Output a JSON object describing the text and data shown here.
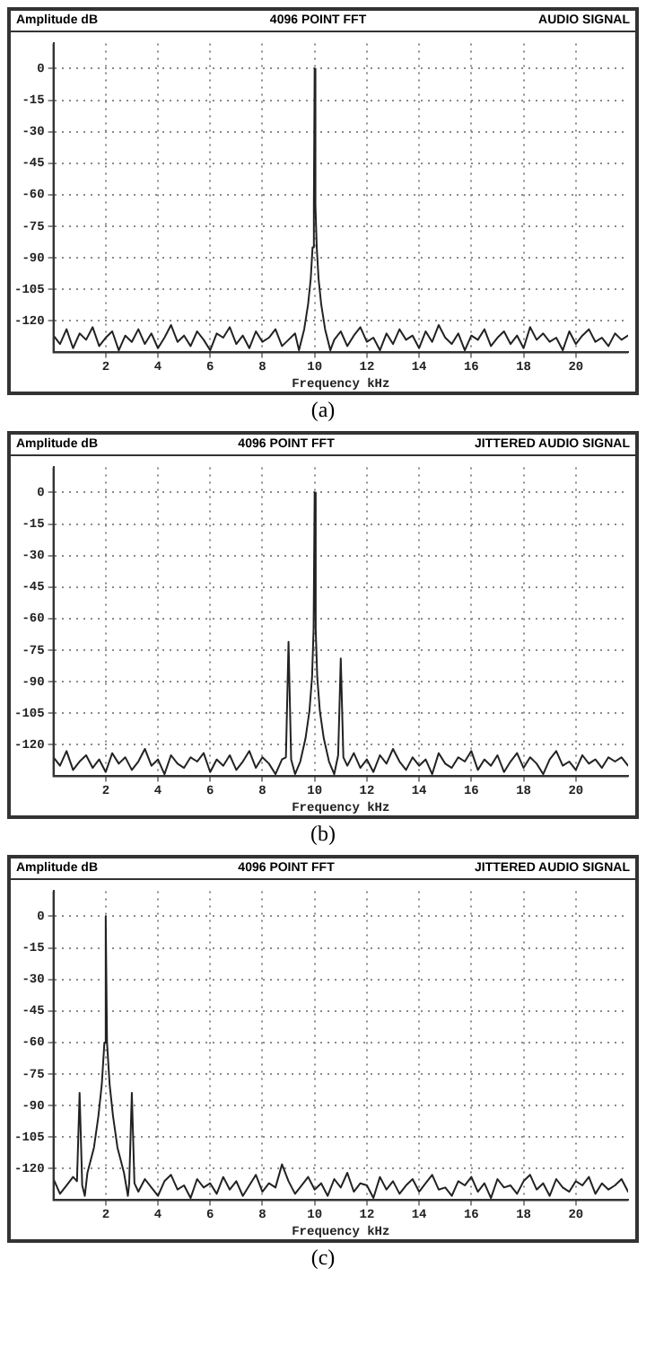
{
  "chart_data": [
    {
      "type": "line",
      "title": "4096 POINT FFT",
      "subtitle": "AUDIO SIGNAL",
      "ylabel": "Amplitude dB",
      "xlabel": "Frequency kHz",
      "annotations": [
        "(a)"
      ],
      "xlim": [
        0,
        22
      ],
      "ylim": [
        -135,
        12
      ],
      "xticks": [
        2,
        4,
        6,
        8,
        10,
        12,
        14,
        16,
        18,
        20
      ],
      "yticks": [
        0,
        -15,
        -30,
        -45,
        -60,
        -75,
        -90,
        -105,
        -120
      ],
      "grid": true,
      "legend": false,
      "marker": "none",
      "line_style": "solid",
      "series": [
        {
          "color": "#222222",
          "x": [
            0,
            0.25,
            0.5,
            0.75,
            1,
            1.25,
            1.5,
            1.75,
            2,
            2.25,
            2.5,
            2.75,
            3,
            3.25,
            3.5,
            3.75,
            4,
            4.25,
            4.5,
            4.75,
            5,
            5.25,
            5.5,
            5.75,
            6,
            6.25,
            6.5,
            6.75,
            7,
            7.25,
            7.5,
            7.75,
            8,
            8.25,
            8.5,
            8.75,
            9,
            9.25,
            9.4,
            9.6,
            9.75,
            9.85,
            9.92,
            9.97,
            10,
            10.03,
            10.08,
            10.15,
            10.25,
            10.4,
            10.6,
            10.75,
            11,
            11.25,
            11.5,
            11.75,
            12,
            12.25,
            12.5,
            12.75,
            13,
            13.25,
            13.5,
            13.75,
            14,
            14.25,
            14.5,
            14.75,
            15,
            15.25,
            15.5,
            15.75,
            16,
            16.25,
            16.5,
            16.75,
            17,
            17.25,
            17.5,
            17.75,
            18,
            18.25,
            18.5,
            18.75,
            19,
            19.25,
            19.5,
            19.75,
            20,
            20.25,
            20.5,
            20.75,
            21,
            21.25,
            21.5,
            21.75,
            22
          ],
          "values": [
            -127,
            -131,
            -124,
            -133,
            -126,
            -129,
            -123,
            -132,
            -128,
            -125,
            -134,
            -127,
            -130,
            -124,
            -131,
            -126,
            -133,
            -128,
            -122,
            -130,
            -127,
            -132,
            -125,
            -129,
            -134,
            -126,
            -128,
            -123,
            -131,
            -127,
            -133,
            -125,
            -130,
            -128,
            -124,
            -132,
            -129,
            -126,
            -134,
            -124,
            -112,
            -100,
            -85,
            -65,
            0,
            -65,
            -85,
            -100,
            -112,
            -124,
            -134,
            -129,
            -125,
            -132,
            -127,
            -123,
            -130,
            -128,
            -134,
            -126,
            -131,
            -124,
            -129,
            -127,
            -133,
            -125,
            -130,
            -122,
            -128,
            -131,
            -126,
            -134,
            -127,
            -129,
            -124,
            -132,
            -128,
            -125,
            -131,
            -127,
            -133,
            -123,
            -129,
            -126,
            -130,
            -128,
            -134,
            -125,
            -131,
            -127,
            -124,
            -130,
            -128,
            -132,
            -126,
            -129,
            -127
          ]
        }
      ]
    },
    {
      "type": "line",
      "title": "4096 POINT FFT",
      "subtitle": "JITTERED AUDIO SIGNAL",
      "ylabel": "Amplitude dB",
      "xlabel": "Frequency kHz",
      "annotations": [
        "(b)"
      ],
      "xlim": [
        0,
        22
      ],
      "ylim": [
        -135,
        12
      ],
      "xticks": [
        2,
        4,
        6,
        8,
        10,
        12,
        14,
        16,
        18,
        20
      ],
      "yticks": [
        0,
        -15,
        -30,
        -45,
        -60,
        -75,
        -90,
        -105,
        -120
      ],
      "grid": true,
      "legend": false,
      "marker": "none",
      "line_style": "solid",
      "series": [
        {
          "color": "#222222",
          "x": [
            0,
            0.25,
            0.5,
            0.75,
            1,
            1.25,
            1.5,
            1.75,
            2,
            2.25,
            2.5,
            2.75,
            3,
            3.25,
            3.5,
            3.75,
            4,
            4.25,
            4.5,
            4.75,
            5,
            5.25,
            5.5,
            5.75,
            6,
            6.25,
            6.5,
            6.75,
            7,
            7.25,
            7.5,
            7.75,
            8,
            8.25,
            8.5,
            8.75,
            8.9,
            9,
            9.1,
            9.25,
            9.45,
            9.65,
            9.8,
            9.9,
            9.96,
            10,
            10.04,
            10.1,
            10.2,
            10.35,
            10.55,
            10.75,
            10.9,
            11,
            11.1,
            11.25,
            11.5,
            11.75,
            12,
            12.25,
            12.5,
            12.75,
            13,
            13.25,
            13.5,
            13.75,
            14,
            14.25,
            14.5,
            14.75,
            15,
            15.25,
            15.5,
            15.75,
            16,
            16.25,
            16.5,
            16.75,
            17,
            17.25,
            17.5,
            17.75,
            18,
            18.25,
            18.5,
            18.75,
            19,
            19.25,
            19.5,
            19.75,
            20,
            20.25,
            20.5,
            20.75,
            21,
            21.25,
            21.5,
            21.75,
            22
          ],
          "values": [
            -126,
            -130,
            -123,
            -132,
            -128,
            -125,
            -131,
            -127,
            -133,
            -124,
            -129,
            -126,
            -132,
            -128,
            -122,
            -130,
            -127,
            -134,
            -125,
            -129,
            -131,
            -126,
            -128,
            -124,
            -133,
            -127,
            -130,
            -125,
            -132,
            -128,
            -123,
            -131,
            -126,
            -129,
            -134,
            -127,
            -126,
            -71,
            -127,
            -134,
            -128,
            -117,
            -104,
            -88,
            -65,
            0,
            -65,
            -88,
            -104,
            -117,
            -128,
            -134,
            -125,
            -79,
            -126,
            -130,
            -124,
            -131,
            -127,
            -133,
            -125,
            -129,
            -122,
            -128,
            -132,
            -126,
            -130,
            -127,
            -134,
            -124,
            -129,
            -131,
            -126,
            -128,
            -123,
            -132,
            -127,
            -130,
            -125,
            -133,
            -128,
            -124,
            -131,
            -126,
            -129,
            -134,
            -127,
            -123,
            -130,
            -128,
            -132,
            -125,
            -129,
            -127,
            -131,
            -126,
            -128,
            -126,
            -130
          ]
        }
      ]
    },
    {
      "type": "line",
      "title": "4096 POINT FFT",
      "subtitle": "JITTERED AUDIO SIGNAL",
      "ylabel": "Amplitude dB",
      "xlabel": "Frequency kHz",
      "annotations": [
        "(c)"
      ],
      "xlim": [
        0,
        22
      ],
      "ylim": [
        -135,
        12
      ],
      "xticks": [
        2,
        4,
        6,
        8,
        10,
        12,
        14,
        16,
        18,
        20
      ],
      "yticks": [
        0,
        -15,
        -30,
        -45,
        -60,
        -75,
        -90,
        -105,
        -120
      ],
      "grid": true,
      "legend": false,
      "marker": "none",
      "line_style": "solid",
      "series": [
        {
          "color": "#222222",
          "x": [
            0,
            0.25,
            0.5,
            0.75,
            0.9,
            1,
            1.1,
            1.2,
            1.3,
            1.55,
            1.72,
            1.85,
            1.95,
            2,
            2.05,
            2.15,
            2.28,
            2.45,
            2.7,
            2.85,
            2.9,
            3,
            3.1,
            3.25,
            3.5,
            3.75,
            4,
            4.25,
            4.5,
            4.75,
            5,
            5.25,
            5.5,
            5.75,
            6,
            6.25,
            6.5,
            6.75,
            7,
            7.25,
            7.5,
            7.75,
            8,
            8.25,
            8.5,
            8.75,
            9,
            9.25,
            9.5,
            9.75,
            10,
            10.25,
            10.5,
            10.75,
            11,
            11.25,
            11.5,
            11.75,
            12,
            12.25,
            12.5,
            12.75,
            13,
            13.25,
            13.5,
            13.75,
            14,
            14.25,
            14.5,
            14.75,
            15,
            15.25,
            15.5,
            15.75,
            16,
            16.25,
            16.5,
            16.75,
            17,
            17.25,
            17.5,
            17.75,
            18,
            18.25,
            18.5,
            18.75,
            19,
            19.25,
            19.5,
            19.75,
            20,
            20.25,
            20.5,
            20.75,
            21,
            21.25,
            21.5,
            21.75,
            22
          ],
          "values": [
            -125,
            -132,
            -128,
            -124,
            -126,
            -84,
            -128,
            -133,
            -122,
            -110,
            -95,
            -80,
            -60,
            0,
            -60,
            -80,
            -95,
            -110,
            -122,
            -133,
            -127,
            -84,
            -127,
            -131,
            -125,
            -129,
            -133,
            -126,
            -123,
            -130,
            -128,
            -134,
            -125,
            -129,
            -127,
            -132,
            -124,
            -130,
            -126,
            -133,
            -128,
            -123,
            -131,
            -127,
            -129,
            -118,
            -126,
            -132,
            -128,
            -124,
            -130,
            -127,
            -133,
            -125,
            -129,
            -122,
            -131,
            -127,
            -128,
            -134,
            -124,
            -130,
            -126,
            -132,
            -128,
            -125,
            -131,
            -127,
            -123,
            -130,
            -129,
            -133,
            -126,
            -128,
            -124,
            -131,
            -127,
            -134,
            -125,
            -129,
            -128,
            -132,
            -126,
            -123,
            -130,
            -127,
            -133,
            -125,
            -129,
            -131,
            -126,
            -128,
            -124,
            -132,
            -127,
            -130,
            -128,
            -125,
            -131
          ]
        }
      ]
    }
  ]
}
